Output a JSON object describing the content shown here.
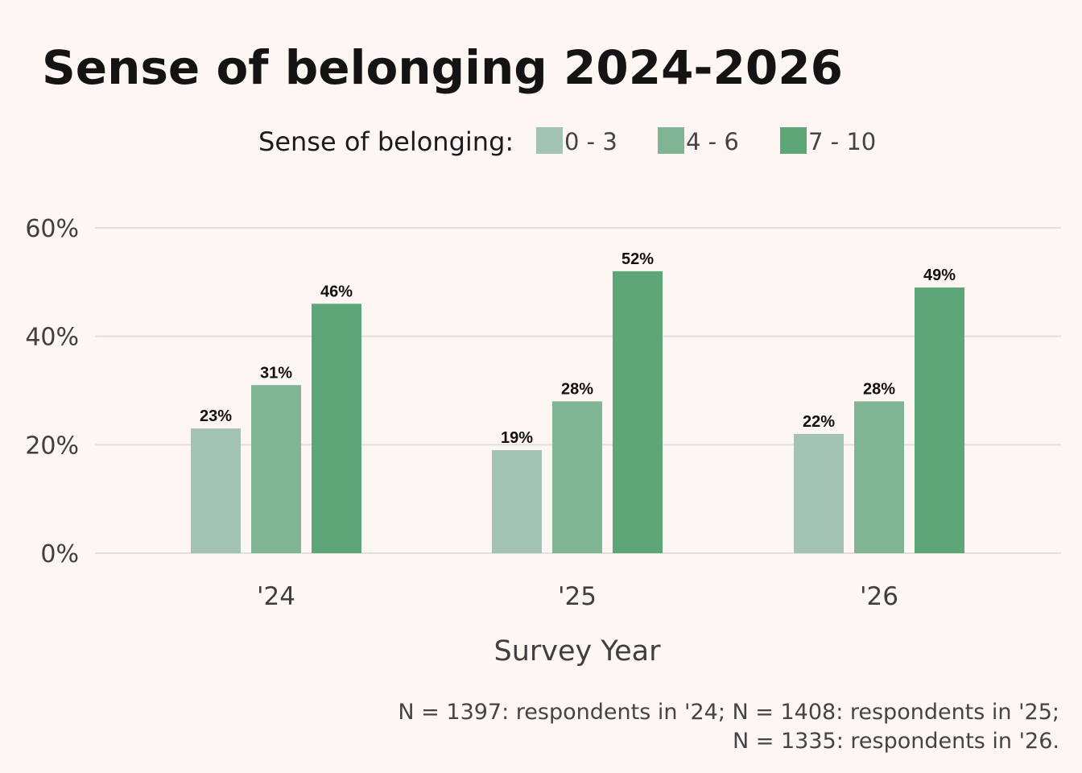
{
  "chart_data": {
    "type": "bar",
    "title": "Sense of belonging 2024-2026",
    "xlabel": "Survey Year",
    "ylabel": "",
    "legend_title": "Sense of belonging:",
    "legend_position": "top",
    "categories": [
      "'24",
      "'25",
      "'26"
    ],
    "series": [
      {
        "name": "0 - 3",
        "color": "#a3c4b2",
        "values": [
          23,
          19,
          22
        ],
        "labels": [
          "23%",
          "19%",
          "22%"
        ]
      },
      {
        "name": "4 - 6",
        "color": "#7fb593",
        "values": [
          31,
          28,
          28
        ],
        "labels": [
          "31%",
          "28%",
          "28%"
        ]
      },
      {
        "name": "7 - 10",
        "color": "#5ca677",
        "values": [
          46,
          52,
          49
        ],
        "labels": [
          "46%",
          "52%",
          "49%"
        ]
      }
    ],
    "ylim": [
      0,
      60
    ],
    "yticks": [
      0,
      20,
      40,
      60
    ],
    "ytick_labels": [
      "0%",
      "20%",
      "40%",
      "60%"
    ],
    "grid": true,
    "caption_lines": [
      "N = 1397: respondents in '24; N = 1408: respondents in '25;",
      "N = 1335: respondents in '26."
    ]
  }
}
